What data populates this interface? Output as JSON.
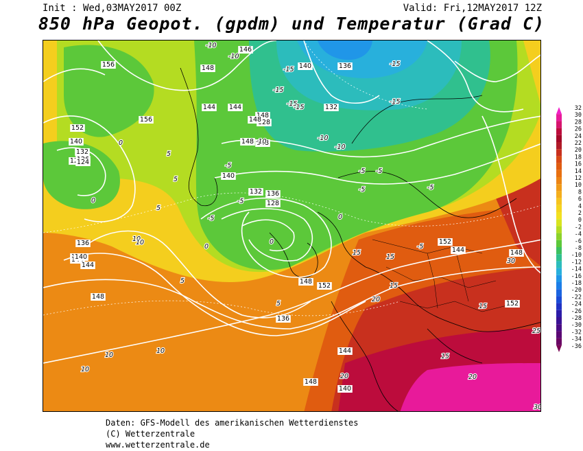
{
  "header": {
    "init": "Init : Wed,03MAY2017 00Z",
    "valid": "Valid: Fri,12MAY2017 12Z",
    "title": "850 hPa Geopot. (gpdm) und Temperatur (Grad C)"
  },
  "footer": {
    "line1": "Daten: GFS-Modell des amerikanischen Wetterdienstes",
    "line2": "(C) Wetterzentrale",
    "line3": "www.wetterzentrale.de"
  },
  "colorbar": {
    "levels": [
      "32",
      "30",
      "28",
      "26",
      "24",
      "22",
      "20",
      "18",
      "16",
      "14",
      "12",
      "10",
      "8",
      "6",
      "4",
      "2",
      "0",
      "-2",
      "-4",
      "-6",
      "-8",
      "-10",
      "-12",
      "-14",
      "-16",
      "-18",
      "-20",
      "-22",
      "-24",
      "-26",
      "-28",
      "-30",
      "-32",
      "-34",
      "-36"
    ],
    "colors": [
      "#f020c8",
      "#e81a9a",
      "#d6146e",
      "#bc0c3c",
      "#a40828",
      "#b01a28",
      "#c8301e",
      "#d84a16",
      "#e05c10",
      "#e87010",
      "#ec8414",
      "#f09a18",
      "#f4ae1c",
      "#f6c41e",
      "#f4d41e",
      "#f2e020",
      "#d8e41e",
      "#b4dc22",
      "#8cd22a",
      "#5cc83a",
      "#3cc060",
      "#30c08e",
      "#2cbcbc",
      "#28b0dc",
      "#2096e8",
      "#1c7ee8",
      "#1a64e0",
      "#1a4cd6",
      "#2032c4",
      "#2c1ca8",
      "#3a1294",
      "#4a0c84",
      "#5a0874",
      "#6a0664",
      "#7a0454"
    ],
    "colors_note_unused": ""
  },
  "map_labels": {
    "geopotential": [
      "156",
      "152",
      "148",
      "144",
      "140",
      "136",
      "132",
      "128",
      "126",
      "124",
      "148",
      "144",
      "140",
      "136",
      "132",
      "128",
      "148",
      "144",
      "140",
      "136",
      "152",
      "148",
      "144",
      "152",
      "148",
      "144",
      "140",
      "136",
      "132",
      "128",
      "156",
      "152",
      "148",
      "144",
      "140",
      "146",
      "148",
      "148",
      "148",
      "148"
    ],
    "temperature": [
      "-15",
      "-15",
      "-15",
      "-15",
      "-15",
      "-15",
      "-10",
      "-10",
      "-10",
      "-10",
      "-10",
      "-5",
      "-5",
      "-5",
      "-5",
      "-5",
      "-5",
      "-5",
      "-5",
      "0",
      "0",
      "0",
      "0",
      "0",
      "5",
      "5",
      "5",
      "5",
      "5",
      "10",
      "10",
      "10",
      "10",
      "10",
      "15",
      "15",
      "15",
      "15",
      "15",
      "20",
      "20",
      "20",
      "25",
      "30",
      "30"
    ]
  }
}
